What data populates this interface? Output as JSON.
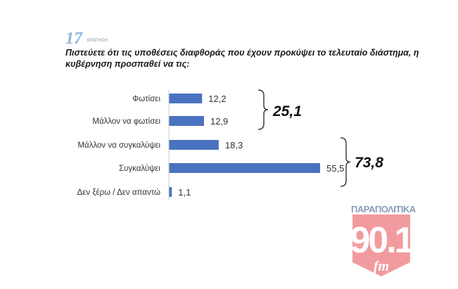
{
  "question": {
    "number": "17",
    "label": "ΕΡΩΤΗΣΗ:",
    "text": "Πιστεύετε ότι τις υποθέσεις διαφθοράς που έχουν προκύψει το τελευταίο διάστημα, η κυβέρνηση προσπαθεί να τις:"
  },
  "chart_data": {
    "type": "bar",
    "orientation": "horizontal",
    "title": "",
    "categories": [
      "Φωτίσει",
      "Μάλλον να φωτίσει",
      "Μάλλον να συγκαλύψει",
      "Συγκαλύψει",
      "Δεν ξέρω / Δεν απαντώ"
    ],
    "values": [
      12.2,
      12.9,
      18.3,
      55.5,
      1.1
    ],
    "value_labels": [
      "12,2",
      "12,9",
      "18,3",
      "55,5",
      "1,1"
    ],
    "color": "#4a72c0",
    "grid": false,
    "groups": [
      {
        "label": "25,1",
        "categories": [
          "Φωτίσει",
          "Μάλλον να φωτίσει"
        ]
      },
      {
        "label": "73,8",
        "categories": [
          "Μάλλον να συγκαλύψει",
          "Συγκαλύψει"
        ]
      }
    ]
  },
  "logo": {
    "brand": "ΠΑΡΑΠΟΛΙΤΙΚΑ",
    "frequency": "90.1",
    "band": "fm",
    "color": "#e8545a"
  }
}
